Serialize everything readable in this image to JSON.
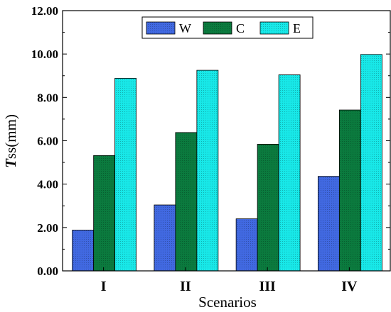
{
  "chart_data": {
    "type": "bar",
    "title": "",
    "xlabel": "Scenarios",
    "ylabel_main": "T",
    "ylabel_sub": "ss",
    "ylabel_unit": "(mm)",
    "categories": [
      "I",
      "II",
      "III",
      "IV"
    ],
    "ylim": [
      0,
      12
    ],
    "yticks": [
      0,
      2,
      4,
      6,
      8,
      10,
      12
    ],
    "ytick_labels": [
      "0.00",
      "2.00",
      "4.00",
      "6.00",
      "8.00",
      "10.00",
      "12.00"
    ],
    "grid": false,
    "legend_position": "top-center",
    "series": [
      {
        "name": "W",
        "values": [
          1.88,
          3.04,
          2.4,
          4.36
        ],
        "color": "#4169e1"
      },
      {
        "name": "C",
        "values": [
          5.32,
          6.38,
          5.84,
          7.42
        ],
        "color": "#0b7a3e"
      },
      {
        "name": "E",
        "values": [
          8.88,
          9.25,
          9.04,
          9.98
        ],
        "color": "#18e8e8"
      }
    ]
  }
}
